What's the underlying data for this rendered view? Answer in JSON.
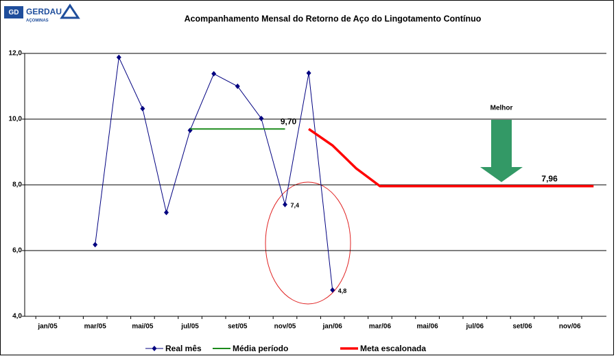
{
  "header": {
    "logo": "GERDAU",
    "logo_sub": "AÇOMINAS"
  },
  "chart_data": {
    "type": "line",
    "title": "Acompanhamento Mensal do Retorno de Aço do Lingotamento Contínuo",
    "categories": [
      "jan/05",
      null,
      "mar/05",
      null,
      "mai/05",
      null,
      "jul/05",
      null,
      "set/05",
      null,
      "nov/05",
      null,
      "jan/06",
      null,
      "mar/06",
      null,
      "mai/06",
      null,
      "jul/06",
      null,
      "set/06",
      null,
      "nov/06",
      null
    ],
    "ylim": [
      4,
      12
    ],
    "yticks": [
      {
        "value": 4,
        "label": "4,0"
      },
      {
        "value": 6,
        "label": "6,0"
      },
      {
        "value": 8,
        "label": "8,0"
      },
      {
        "value": 10,
        "label": "10,0"
      },
      {
        "value": 12,
        "label": "12,0"
      }
    ],
    "grid": true,
    "legend": "bottom",
    "series": [
      {
        "name": "Real mês",
        "color": "#000080",
        "values": [
          null,
          null,
          6.18,
          11.88,
          10.32,
          7.16,
          9.66,
          11.38,
          11.0,
          10.02,
          7.4,
          11.4,
          4.8,
          null,
          null,
          null,
          null,
          null,
          null,
          null,
          null,
          null,
          null,
          null
        ],
        "value_labels": [
          null,
          null,
          null,
          null,
          null,
          null,
          null,
          null,
          null,
          null,
          "7,4",
          null,
          "4,8",
          null,
          null,
          null,
          null,
          null,
          null,
          null,
          null,
          null,
          null,
          null
        ]
      },
      {
        "name": "Média período",
        "color": "#1a8a1a",
        "values": [
          null,
          null,
          null,
          null,
          null,
          null,
          9.7,
          9.7,
          9.7,
          9.7,
          9.7,
          null,
          null,
          null,
          null,
          null,
          null,
          null,
          null,
          null,
          null,
          null,
          null,
          null
        ],
        "value_labels": [
          null,
          null,
          null,
          null,
          null,
          null,
          null,
          null,
          null,
          null,
          "9,70",
          null,
          null,
          null,
          null,
          null,
          null,
          null,
          null,
          null,
          null,
          null,
          null,
          null
        ]
      },
      {
        "name": "Meta escalonada",
        "color": "#ff0000",
        "values": [
          null,
          null,
          null,
          null,
          null,
          null,
          null,
          null,
          null,
          null,
          null,
          9.7,
          9.2,
          8.5,
          7.96,
          7.96,
          7.96,
          7.96,
          7.96,
          7.96,
          7.96,
          7.96,
          7.96,
          7.96
        ],
        "value_labels": [
          null,
          null,
          null,
          null,
          null,
          null,
          null,
          null,
          null,
          null,
          null,
          null,
          null,
          null,
          null,
          null,
          null,
          null,
          null,
          null,
          null,
          "7,96",
          null,
          null
        ]
      }
    ],
    "annotations": [
      "Melhor"
    ]
  }
}
